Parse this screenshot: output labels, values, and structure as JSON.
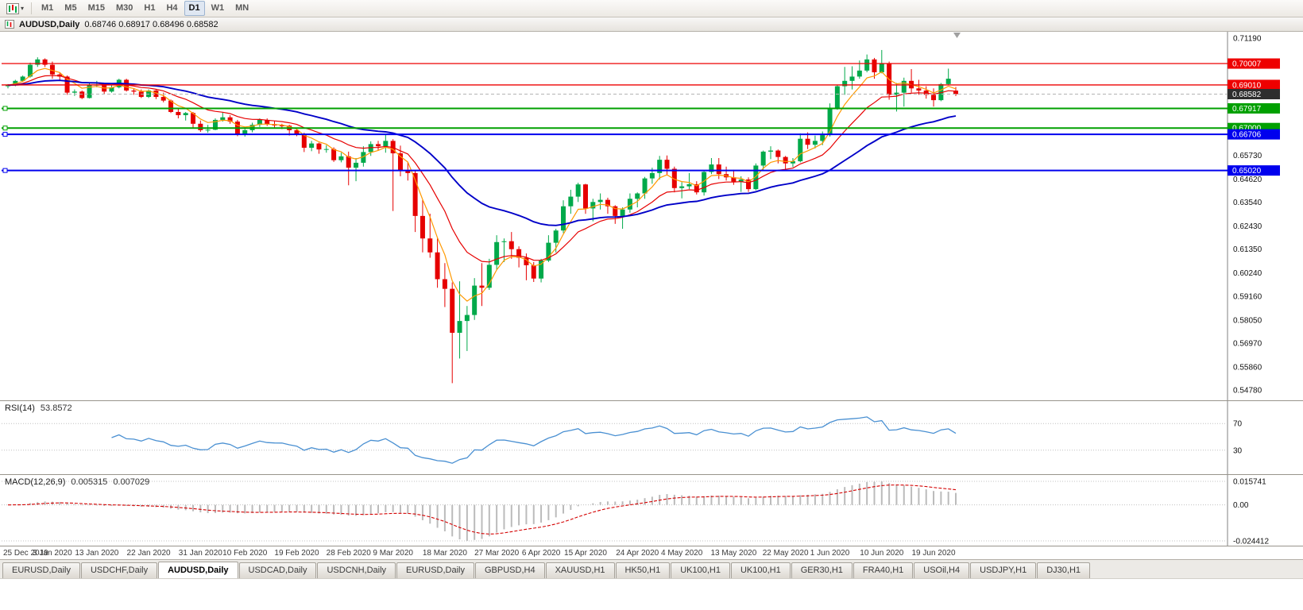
{
  "toolbar": {
    "timeframes": [
      {
        "label": "M1",
        "active": false
      },
      {
        "label": "M5",
        "active": false
      },
      {
        "label": "M15",
        "active": false
      },
      {
        "label": "M30",
        "active": false
      },
      {
        "label": "H1",
        "active": false
      },
      {
        "label": "H4",
        "active": false
      },
      {
        "label": "D1",
        "active": true
      },
      {
        "label": "W1",
        "active": false
      },
      {
        "label": "MN",
        "active": false
      }
    ]
  },
  "window": {
    "title_symbol": "AUDUSD,Daily",
    "title_ohlc": "0.68746 0.68917 0.68496 0.68582"
  },
  "chart_data": {
    "type": "candlestick",
    "title": "AUDUSD,Daily",
    "symbol": "AUDUSD",
    "period": "Daily",
    "ohlc": {
      "open": 0.68746,
      "high": 0.68917,
      "low": 0.68496,
      "close": 0.68582
    },
    "price_axis": {
      "min": 0.543,
      "max": 0.7149,
      "ticks": [
        "0.71190",
        "0.65730",
        "0.64620",
        "0.63540",
        "0.62430",
        "0.61350",
        "0.60240",
        "0.59160",
        "0.58050",
        "0.56970",
        "0.55860",
        "0.54780"
      ]
    },
    "current_price": 0.68582,
    "current_price_label": "0.68582",
    "colors": {
      "up": "#00A94A",
      "down": "#E60000"
    },
    "hlines": [
      {
        "value": 0.70007,
        "badge": "0.70007",
        "color": "#EE0000",
        "width": 1.3,
        "marker": false
      },
      {
        "value": 0.6901,
        "badge": "0.69010",
        "color": "#EE0000",
        "width": 1.3,
        "marker": false
      },
      {
        "value": 0.67917,
        "badge": "0.67917",
        "color": "#00A000",
        "width": 2,
        "marker": true
      },
      {
        "value": 0.67,
        "badge": "0.67000",
        "color": "#00A000",
        "width": 2,
        "marker": true
      },
      {
        "value": 0.66706,
        "badge": "0.66706",
        "color": "#0000EE",
        "width": 2,
        "marker": true
      },
      {
        "value": 0.6502,
        "badge": "0.65020",
        "color": "#0000EE",
        "width": 2,
        "marker": true
      }
    ],
    "moving_averages": [
      {
        "name": "fast",
        "period": 5,
        "color": "#FF9900",
        "width": 1.2
      },
      {
        "name": "medium",
        "period": 13,
        "color": "#E60000",
        "width": 1.2
      },
      {
        "name": "slow",
        "period": 34,
        "color": "#0000C8",
        "width": 1.9
      }
    ],
    "candles": [
      [
        0.6895,
        0.6905,
        0.6885,
        0.69
      ],
      [
        0.69,
        0.6925,
        0.6895,
        0.692
      ],
      [
        0.692,
        0.6945,
        0.6915,
        0.694
      ],
      [
        0.694,
        0.7005,
        0.6935,
        0.6995
      ],
      [
        0.6995,
        0.703,
        0.6985,
        0.702
      ],
      [
        0.702,
        0.7025,
        0.6985,
        0.6995
      ],
      [
        0.6995,
        0.701,
        0.693,
        0.695
      ],
      [
        0.695,
        0.696,
        0.6925,
        0.694
      ],
      [
        0.694,
        0.6945,
        0.6855,
        0.6865
      ],
      [
        0.6865,
        0.688,
        0.685,
        0.687
      ],
      [
        0.687,
        0.6875,
        0.6835,
        0.684
      ],
      [
        0.684,
        0.691,
        0.6838,
        0.69
      ],
      [
        0.69,
        0.692,
        0.689,
        0.6902
      ],
      [
        0.6902,
        0.6905,
        0.686,
        0.687
      ],
      [
        0.687,
        0.69,
        0.6865,
        0.689
      ],
      [
        0.689,
        0.693,
        0.6885,
        0.6925
      ],
      [
        0.6925,
        0.693,
        0.687,
        0.6875
      ],
      [
        0.6875,
        0.6885,
        0.6855,
        0.687
      ],
      [
        0.687,
        0.688,
        0.684,
        0.6845
      ],
      [
        0.6845,
        0.688,
        0.684,
        0.6875
      ],
      [
        0.6875,
        0.6878,
        0.6835,
        0.6845
      ],
      [
        0.6845,
        0.6865,
        0.682,
        0.6828
      ],
      [
        0.6828,
        0.6833,
        0.677,
        0.6775
      ],
      [
        0.6775,
        0.679,
        0.6745,
        0.676
      ],
      [
        0.676,
        0.6775,
        0.6735,
        0.677
      ],
      [
        0.677,
        0.6775,
        0.67,
        0.672
      ],
      [
        0.672,
        0.6735,
        0.6682,
        0.669
      ],
      [
        0.669,
        0.6715,
        0.6678,
        0.6692
      ],
      [
        0.6692,
        0.6745,
        0.669,
        0.6738
      ],
      [
        0.6738,
        0.6773,
        0.673,
        0.675
      ],
      [
        0.675,
        0.676,
        0.672,
        0.673
      ],
      [
        0.673,
        0.6738,
        0.6662,
        0.667
      ],
      [
        0.667,
        0.67,
        0.666,
        0.669
      ],
      [
        0.669,
        0.6725,
        0.668,
        0.6715
      ],
      [
        0.6715,
        0.6745,
        0.6705,
        0.6738
      ],
      [
        0.6738,
        0.6745,
        0.671,
        0.6718
      ],
      [
        0.6718,
        0.6733,
        0.67,
        0.6712
      ],
      [
        0.6712,
        0.672,
        0.6695,
        0.6711
      ],
      [
        0.6711,
        0.6715,
        0.6665,
        0.669
      ],
      [
        0.669,
        0.67,
        0.6662,
        0.6672
      ],
      [
        0.6672,
        0.6678,
        0.6588,
        0.6608
      ],
      [
        0.6608,
        0.664,
        0.6592,
        0.6628
      ],
      [
        0.6628,
        0.6632,
        0.658,
        0.66
      ],
      [
        0.66,
        0.662,
        0.6585,
        0.6602
      ],
      [
        0.6602,
        0.661,
        0.6542,
        0.655
      ],
      [
        0.655,
        0.6585,
        0.654,
        0.6568
      ],
      [
        0.6568,
        0.659,
        0.6433,
        0.6515
      ],
      [
        0.6515,
        0.656,
        0.6452,
        0.6538
      ],
      [
        0.6538,
        0.6615,
        0.652,
        0.6588
      ],
      [
        0.6588,
        0.6638,
        0.657,
        0.6625
      ],
      [
        0.6625,
        0.664,
        0.6595,
        0.6615
      ],
      [
        0.6615,
        0.667,
        0.6585,
        0.664
      ],
      [
        0.664,
        0.6648,
        0.6313,
        0.6582
      ],
      [
        0.6582,
        0.6618,
        0.6475,
        0.65
      ],
      [
        0.65,
        0.654,
        0.6455,
        0.649
      ],
      [
        0.649,
        0.65,
        0.6215,
        0.629
      ],
      [
        0.629,
        0.6365,
        0.612,
        0.6185
      ],
      [
        0.6185,
        0.63,
        0.6095,
        0.612
      ],
      [
        0.612,
        0.6185,
        0.5955,
        0.5995
      ],
      [
        0.5995,
        0.607,
        0.5865,
        0.595
      ],
      [
        0.595,
        0.598,
        0.551,
        0.5745
      ],
      [
        0.5745,
        0.5985,
        0.5625,
        0.58
      ],
      [
        0.58,
        0.587,
        0.566,
        0.5828
      ],
      [
        0.5828,
        0.6,
        0.5805,
        0.5965
      ],
      [
        0.5965,
        0.607,
        0.587,
        0.5955
      ],
      [
        0.5955,
        0.609,
        0.5945,
        0.6062
      ],
      [
        0.6062,
        0.62,
        0.604,
        0.6168
      ],
      [
        0.6168,
        0.6185,
        0.6075,
        0.6172
      ],
      [
        0.6172,
        0.6215,
        0.609,
        0.6135
      ],
      [
        0.6135,
        0.6148,
        0.605,
        0.6095
      ],
      [
        0.6095,
        0.6115,
        0.599,
        0.606
      ],
      [
        0.606,
        0.6075,
        0.5982,
        0.5998
      ],
      [
        0.5998,
        0.609,
        0.598,
        0.6082
      ],
      [
        0.6082,
        0.62,
        0.6075,
        0.6165
      ],
      [
        0.6165,
        0.623,
        0.612,
        0.6222
      ],
      [
        0.6222,
        0.6363,
        0.621,
        0.6335
      ],
      [
        0.6335,
        0.6412,
        0.63,
        0.638
      ],
      [
        0.638,
        0.6445,
        0.6355,
        0.6437
      ],
      [
        0.6437,
        0.644,
        0.63,
        0.6325
      ],
      [
        0.6325,
        0.637,
        0.6265,
        0.6355
      ],
      [
        0.6355,
        0.6395,
        0.632,
        0.6365
      ],
      [
        0.6365,
        0.6375,
        0.63,
        0.6335
      ],
      [
        0.6335,
        0.634,
        0.6253,
        0.629
      ],
      [
        0.629,
        0.633,
        0.623,
        0.632
      ],
      [
        0.632,
        0.6395,
        0.6305,
        0.637
      ],
      [
        0.637,
        0.64,
        0.633,
        0.6395
      ],
      [
        0.6395,
        0.6472,
        0.637,
        0.6465
      ],
      [
        0.6465,
        0.6515,
        0.644,
        0.649
      ],
      [
        0.649,
        0.657,
        0.646,
        0.6552
      ],
      [
        0.6552,
        0.6572,
        0.648,
        0.651
      ],
      [
        0.651,
        0.652,
        0.64,
        0.642
      ],
      [
        0.642,
        0.6448,
        0.6372,
        0.6428
      ],
      [
        0.6428,
        0.649,
        0.6415,
        0.6438
      ],
      [
        0.6438,
        0.6452,
        0.639,
        0.64
      ],
      [
        0.64,
        0.65,
        0.6385,
        0.6495
      ],
      [
        0.6495,
        0.656,
        0.6485,
        0.653
      ],
      [
        0.653,
        0.656,
        0.6462,
        0.6485
      ],
      [
        0.6485,
        0.652,
        0.6455,
        0.647
      ],
      [
        0.647,
        0.6505,
        0.6435,
        0.645
      ],
      [
        0.645,
        0.6475,
        0.6402,
        0.646
      ],
      [
        0.646,
        0.647,
        0.6402,
        0.6415
      ],
      [
        0.6415,
        0.6535,
        0.641,
        0.6525
      ],
      [
        0.6525,
        0.6595,
        0.6505,
        0.659
      ],
      [
        0.659,
        0.6615,
        0.6555,
        0.6595
      ],
      [
        0.6595,
        0.66,
        0.6535,
        0.6565
      ],
      [
        0.6565,
        0.657,
        0.6505,
        0.6535
      ],
      [
        0.6535,
        0.656,
        0.6518,
        0.6545
      ],
      [
        0.6545,
        0.6675,
        0.654,
        0.665
      ],
      [
        0.665,
        0.668,
        0.6602,
        0.6622
      ],
      [
        0.6622,
        0.6665,
        0.6605,
        0.664
      ],
      [
        0.664,
        0.6684,
        0.662,
        0.6667
      ],
      [
        0.6667,
        0.6815,
        0.666,
        0.6795
      ],
      [
        0.6795,
        0.69,
        0.6785,
        0.6895
      ],
      [
        0.6895,
        0.6985,
        0.6855,
        0.692
      ],
      [
        0.692,
        0.6988,
        0.688,
        0.694
      ],
      [
        0.694,
        0.7015,
        0.693,
        0.6968
      ],
      [
        0.6968,
        0.7043,
        0.696,
        0.702
      ],
      [
        0.702,
        0.7027,
        0.693,
        0.696
      ],
      [
        0.696,
        0.7064,
        0.6955,
        0.7
      ],
      [
        0.7,
        0.701,
        0.6832,
        0.6855
      ],
      [
        0.6855,
        0.691,
        0.6777,
        0.6865
      ],
      [
        0.6865,
        0.6935,
        0.68,
        0.692
      ],
      [
        0.692,
        0.6975,
        0.6865,
        0.6885
      ],
      [
        0.6885,
        0.6925,
        0.6855,
        0.6875
      ],
      [
        0.6875,
        0.6895,
        0.6837,
        0.6855
      ],
      [
        0.6855,
        0.6885,
        0.68,
        0.683
      ],
      [
        0.683,
        0.691,
        0.6825,
        0.6905
      ],
      [
        0.6905,
        0.6977,
        0.69,
        0.693
      ],
      [
        0.68746,
        0.68917,
        0.68496,
        0.68582
      ]
    ],
    "x_labels": [
      {
        "text": "25 Dec 2019",
        "index": 0
      },
      {
        "text": "3 Jan 2020",
        "index": 6
      },
      {
        "text": "13 Jan 2020",
        "index": 12
      },
      {
        "text": "22 Jan 2020",
        "index": 19
      },
      {
        "text": "31 Jan 2020",
        "index": 26
      },
      {
        "text": "10 Feb 2020",
        "index": 32
      },
      {
        "text": "19 Feb 2020",
        "index": 39
      },
      {
        "text": "28 Feb 2020",
        "index": 46
      },
      {
        "text": "9 Mar 2020",
        "index": 52
      },
      {
        "text": "18 Mar 2020",
        "index": 59
      },
      {
        "text": "27 Mar 2020",
        "index": 66
      },
      {
        "text": "6 Apr 2020",
        "index": 72
      },
      {
        "text": "15 Apr 2020",
        "index": 78
      },
      {
        "text": "24 Apr 2020",
        "index": 85
      },
      {
        "text": "4 May 2020",
        "index": 91
      },
      {
        "text": "13 May 2020",
        "index": 98
      },
      {
        "text": "22 May 2020",
        "index": 105
      },
      {
        "text": "1 Jun 2020",
        "index": 111
      },
      {
        "text": "10 Jun 2020",
        "index": 118
      },
      {
        "text": "19 Jun 2020",
        "index": 125
      }
    ],
    "rsi": {
      "label": "RSI(14)",
      "value": "53.8572",
      "period": 14,
      "levels": [
        70,
        30
      ],
      "color": "#4A90D2"
    },
    "macd": {
      "label": "MACD(12,26,9)",
      "value_main": "0.005315",
      "value_signal": "0.007029",
      "fast": 12,
      "slow": 26,
      "signal": 9,
      "axis_labels": [
        "0.015741",
        "0.00",
        "-0.024412"
      ],
      "histogram_color": "#BBBBBB",
      "signal_color": "#D40000"
    }
  },
  "tabs": {
    "active_index": 2,
    "items": [
      "EURUSD,Daily",
      "USDCHF,Daily",
      "AUDUSD,Daily",
      "USDCAD,Daily",
      "USDCNH,Daily",
      "EURUSD,Daily",
      "GBPUSD,H4",
      "XAUUSD,H1",
      "HK50,H1",
      "UK100,H1",
      "UK100,H1",
      "GER30,H1",
      "FRA40,H1",
      "USOil,H4",
      "USDJPY,H1",
      "DJ30,H1"
    ]
  }
}
